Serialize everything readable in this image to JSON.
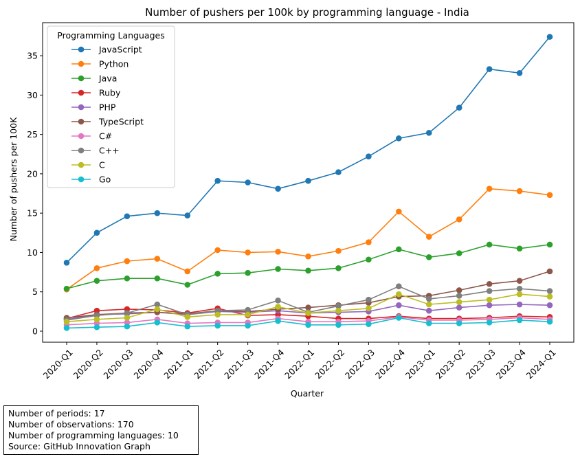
{
  "chart_data": {
    "type": "line",
    "title": "Number of pushers per 100k by programming language - India",
    "xlabel": "Quarter",
    "ylabel": "Number of pushers per 100K",
    "ylim": [
      -1.4,
      39.2
    ],
    "yticks": [
      0,
      5,
      10,
      15,
      20,
      25,
      30,
      35
    ],
    "grid": false,
    "legend": {
      "title": "Programming Languages",
      "placement": "top-left"
    },
    "categories": [
      "2020-Q1",
      "2020-Q2",
      "2020-Q3",
      "2020-Q4",
      "2021-Q1",
      "2021-Q2",
      "2021-Q3",
      "2021-Q4",
      "2022-Q1",
      "2022-Q2",
      "2022-Q3",
      "2022-Q4",
      "2023-Q1",
      "2023-Q2",
      "2023-Q3",
      "2023-Q4",
      "2024-Q1"
    ],
    "series": [
      {
        "name": "JavaScript",
        "color": "#1f77b4",
        "values": [
          8.7,
          12.5,
          14.6,
          15.0,
          14.7,
          19.1,
          18.9,
          18.1,
          19.1,
          20.2,
          22.2,
          24.5,
          25.2,
          28.4,
          33.3,
          32.8,
          37.4
        ]
      },
      {
        "name": "Python",
        "color": "#ff7f0e",
        "values": [
          5.3,
          8.0,
          8.9,
          9.2,
          7.6,
          10.3,
          10.0,
          10.1,
          9.5,
          10.2,
          11.3,
          15.2,
          12.0,
          14.2,
          18.1,
          17.8,
          17.3
        ]
      },
      {
        "name": "Java",
        "color": "#2ca02c",
        "values": [
          5.4,
          6.4,
          6.7,
          6.7,
          5.9,
          7.3,
          7.4,
          7.9,
          7.7,
          8.0,
          9.1,
          10.4,
          9.4,
          9.9,
          11.0,
          10.5,
          11.0
        ]
      },
      {
        "name": "Ruby",
        "color": "#d62728",
        "values": [
          1.6,
          2.6,
          2.8,
          2.7,
          2.3,
          2.9,
          2.0,
          2.1,
          1.9,
          1.6,
          1.6,
          1.9,
          1.6,
          1.6,
          1.7,
          1.9,
          1.8
        ]
      },
      {
        "name": "PHP",
        "color": "#9467bd",
        "values": [
          1.5,
          2.1,
          2.2,
          2.4,
          2.1,
          2.5,
          2.4,
          2.6,
          2.3,
          2.4,
          2.5,
          3.3,
          2.6,
          3.0,
          3.3,
          3.4,
          3.3
        ]
      },
      {
        "name": "TypeScript",
        "color": "#8c564b",
        "values": [
          1.7,
          2.1,
          2.3,
          2.4,
          2.2,
          2.6,
          2.5,
          2.8,
          3.0,
          3.3,
          3.6,
          4.4,
          4.5,
          5.2,
          6.0,
          6.4,
          7.6
        ]
      },
      {
        "name": "C#",
        "color": "#e377c2",
        "values": [
          0.8,
          1.0,
          1.1,
          1.5,
          1.0,
          1.1,
          1.1,
          1.6,
          1.2,
          1.2,
          1.3,
          1.8,
          1.4,
          1.4,
          1.5,
          1.7,
          1.5
        ]
      },
      {
        "name": "C++",
        "color": "#7f7f7f",
        "values": [
          1.4,
          2.0,
          2.3,
          3.4,
          2.1,
          2.6,
          2.7,
          3.9,
          2.4,
          3.2,
          4.0,
          5.7,
          4.1,
          4.5,
          5.1,
          5.4,
          5.1
        ]
      },
      {
        "name": "C",
        "color": "#bcbd22",
        "values": [
          1.2,
          1.5,
          1.7,
          2.8,
          1.8,
          2.1,
          2.1,
          3.1,
          2.3,
          2.6,
          2.9,
          4.7,
          3.4,
          3.7,
          4.0,
          4.7,
          4.4
        ]
      },
      {
        "name": "Go",
        "color": "#17becf",
        "values": [
          0.4,
          0.5,
          0.6,
          1.1,
          0.6,
          0.7,
          0.7,
          1.3,
          0.8,
          0.8,
          0.9,
          1.7,
          1.0,
          1.0,
          1.1,
          1.4,
          1.2
        ]
      }
    ]
  },
  "footnote": {
    "periods": "Number of periods: 17",
    "observations": "Number of observations: 170",
    "languages": "Number of programming languages: 10",
    "source": "Source: GitHub Innovation Graph"
  }
}
